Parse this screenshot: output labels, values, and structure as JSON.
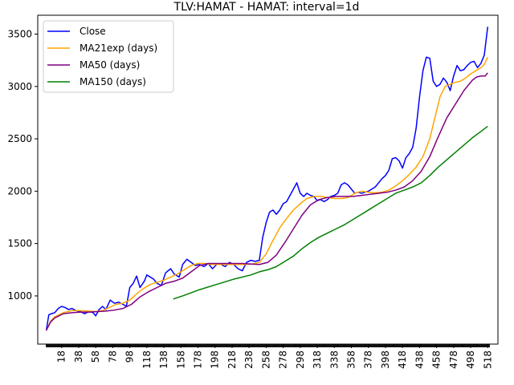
{
  "chart_data": {
    "type": "line",
    "title": "TLV:HAMAT - HAMAT: interval=1d",
    "xlabel": "",
    "ylabel": "",
    "xlim": [
      -10,
      530
    ],
    "ylim": [
      540,
      3680
    ],
    "xticks": [
      18,
      38,
      58,
      78,
      98,
      118,
      138,
      158,
      178,
      198,
      218,
      238,
      258,
      278,
      298,
      318,
      338,
      358,
      378,
      398,
      418,
      438,
      458,
      478,
      498,
      518
    ],
    "yticks": [
      1000,
      1500,
      2000,
      2500,
      3000,
      3500
    ],
    "legend_position": "top-left",
    "grid": false,
    "series": [
      {
        "name": "Close",
        "color": "#0000ff",
        "x": [
          0,
          3,
          6,
          10,
          14,
          18,
          22,
          26,
          30,
          35,
          40,
          45,
          50,
          55,
          58,
          62,
          66,
          70,
          75,
          80,
          85,
          90,
          94,
          98,
          102,
          106,
          110,
          115,
          118,
          122,
          126,
          130,
          135,
          140,
          146,
          150,
          156,
          160,
          165,
          170,
          175,
          180,
          185,
          190,
          195,
          200,
          205,
          210,
          215,
          220,
          225,
          230,
          235,
          240,
          245,
          250,
          254,
          258,
          262,
          266,
          270,
          274,
          278,
          282,
          286,
          290,
          294,
          298,
          302,
          306,
          310,
          314,
          318,
          322,
          326,
          330,
          334,
          338,
          342,
          346,
          350,
          354,
          358,
          362,
          366,
          370,
          374,
          378,
          382,
          386,
          390,
          394,
          398,
          402,
          406,
          410,
          414,
          418,
          422,
          426,
          430,
          434,
          438,
          442,
          446,
          450,
          454,
          458,
          462,
          466,
          470,
          474,
          478,
          482,
          486,
          490,
          494,
          498,
          502,
          506,
          510,
          514,
          518
        ],
        "values": [
          670,
          820,
          830,
          840,
          880,
          900,
          890,
          870,
          880,
          860,
          850,
          830,
          850,
          840,
          810,
          870,
          900,
          870,
          960,
          930,
          940,
          920,
          900,
          1080,
          1120,
          1190,
          1080,
          1140,
          1200,
          1180,
          1160,
          1120,
          1100,
          1220,
          1260,
          1210,
          1180,
          1300,
          1350,
          1320,
          1290,
          1300,
          1280,
          1310,
          1260,
          1300,
          1300,
          1280,
          1320,
          1300,
          1260,
          1240,
          1320,
          1340,
          1330,
          1340,
          1560,
          1700,
          1800,
          1820,
          1780,
          1820,
          1880,
          1900,
          1960,
          2020,
          2080,
          1980,
          1950,
          1980,
          1960,
          1950,
          1910,
          1920,
          1900,
          1920,
          1950,
          1960,
          1980,
          2060,
          2080,
          2060,
          2020,
          1980,
          1990,
          1980,
          1990,
          2000,
          2020,
          2040,
          2080,
          2120,
          2150,
          2200,
          2310,
          2320,
          2290,
          2220,
          2320,
          2360,
          2420,
          2600,
          2900,
          3150,
          3280,
          3270,
          3050,
          3000,
          3020,
          3080,
          3040,
          2960,
          3100,
          3200,
          3150,
          3160,
          3200,
          3230,
          3240,
          3180,
          3220,
          3300,
          3570
        ]
      },
      {
        "name": "MA21exp (days)",
        "color": "#ffa500",
        "x": [
          0,
          5,
          10,
          20,
          30,
          40,
          50,
          58,
          66,
          74,
          82,
          90,
          98,
          106,
          114,
          122,
          130,
          138,
          146,
          154,
          162,
          170,
          178,
          186,
          194,
          202,
          210,
          218,
          226,
          234,
          242,
          250,
          258,
          266,
          274,
          282,
          290,
          298,
          306,
          314,
          322,
          330,
          338,
          346,
          354,
          362,
          370,
          378,
          386,
          394,
          402,
          410,
          418,
          426,
          434,
          442,
          450,
          456,
          462,
          468,
          474,
          480,
          486,
          492,
          498,
          504,
          510,
          514,
          518
        ],
        "values": [
          670,
          760,
          800,
          840,
          860,
          860,
          855,
          850,
          860,
          890,
          920,
          930,
          960,
          1020,
          1070,
          1110,
          1130,
          1150,
          1180,
          1210,
          1250,
          1290,
          1310,
          1310,
          1300,
          1300,
          1300,
          1300,
          1300,
          1300,
          1305,
          1320,
          1400,
          1530,
          1650,
          1740,
          1820,
          1880,
          1930,
          1950,
          1950,
          1940,
          1930,
          1930,
          1940,
          1980,
          2000,
          1990,
          1985,
          1990,
          2010,
          2050,
          2100,
          2160,
          2230,
          2330,
          2500,
          2700,
          2900,
          3000,
          3020,
          3040,
          3050,
          3080,
          3120,
          3150,
          3180,
          3210,
          3280
        ]
      },
      {
        "name": "MA50 (days)",
        "color": "#800080",
        "x": [
          0,
          5,
          10,
          20,
          30,
          40,
          50,
          60,
          70,
          80,
          90,
          100,
          110,
          120,
          130,
          140,
          150,
          160,
          170,
          180,
          190,
          200,
          210,
          220,
          230,
          240,
          250,
          260,
          270,
          280,
          290,
          300,
          310,
          320,
          330,
          340,
          350,
          360,
          370,
          380,
          390,
          400,
          410,
          420,
          430,
          440,
          450,
          460,
          470,
          480,
          490,
          500,
          505,
          510,
          515,
          518
        ],
        "values": [
          670,
          750,
          790,
          830,
          840,
          845,
          845,
          850,
          855,
          865,
          880,
          920,
          990,
          1040,
          1080,
          1120,
          1140,
          1170,
          1230,
          1290,
          1310,
          1310,
          1310,
          1310,
          1310,
          1305,
          1300,
          1320,
          1390,
          1510,
          1640,
          1770,
          1870,
          1920,
          1940,
          1950,
          1950,
          1950,
          1960,
          1970,
          1980,
          1990,
          2010,
          2040,
          2100,
          2190,
          2330,
          2520,
          2700,
          2830,
          2960,
          3060,
          3090,
          3100,
          3100,
          3130
        ]
      },
      {
        "name": "MA150 (days)",
        "color": "#008000",
        "x": [
          149,
          160,
          180,
          200,
          220,
          240,
          250,
          260,
          270,
          280,
          290,
          300,
          310,
          320,
          330,
          340,
          350,
          360,
          370,
          380,
          390,
          400,
          410,
          420,
          430,
          440,
          450,
          460,
          470,
          480,
          490,
          500,
          510,
          518
        ],
        "values": [
          970,
          1000,
          1060,
          1110,
          1160,
          1200,
          1230,
          1250,
          1280,
          1330,
          1380,
          1450,
          1510,
          1560,
          1600,
          1640,
          1680,
          1730,
          1780,
          1830,
          1880,
          1930,
          1980,
          2010,
          2040,
          2080,
          2150,
          2230,
          2300,
          2370,
          2440,
          2510,
          2570,
          2620
        ]
      }
    ]
  }
}
